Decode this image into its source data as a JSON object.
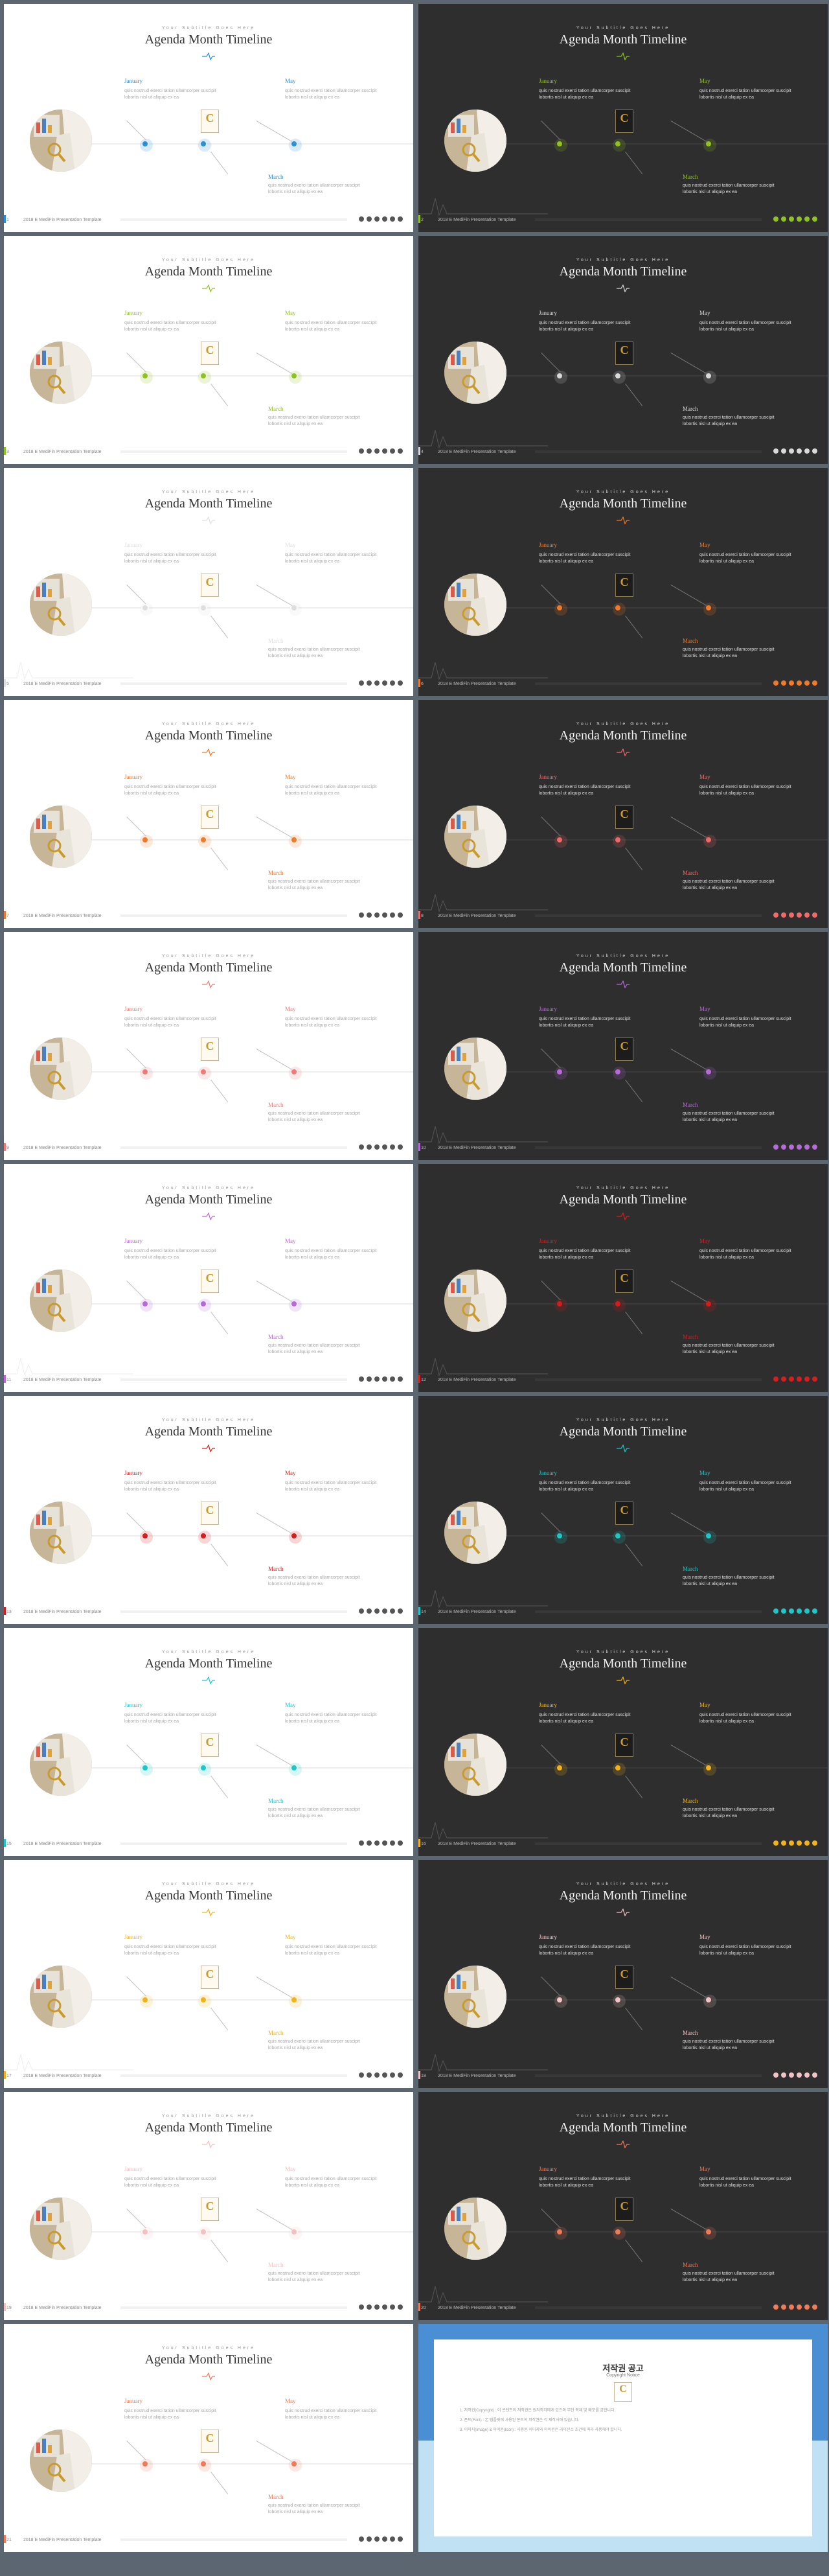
{
  "common": {
    "subtitle": "Your Subtitle Goes Here",
    "title": "Agenda Month Timeline",
    "footer": "2018 E MediFin Presentation Template",
    "labels": [
      "January",
      "May",
      "March"
    ],
    "desc": "quis nostrud exerci tation ullamcorper suscipit lobortis nisl ut aliquip ex ea",
    "logo_letter": "C"
  },
  "slides": [
    {
      "theme": "light",
      "accent": "#2b8fd6",
      "page": "1"
    },
    {
      "theme": "dark",
      "accent": "#8fc31f",
      "page": "2"
    },
    {
      "theme": "light",
      "accent": "#8fc31f",
      "page": "3"
    },
    {
      "theme": "dark",
      "accent": "#d9d9d9",
      "page": "4"
    },
    {
      "theme": "light",
      "accent": "#e0e0e0",
      "page": "5"
    },
    {
      "theme": "dark",
      "accent": "#f07a2a",
      "page": "6"
    },
    {
      "theme": "light",
      "accent": "#f07a2a",
      "page": "7"
    },
    {
      "theme": "dark",
      "accent": "#f06a6a",
      "page": "8"
    },
    {
      "theme": "light",
      "accent": "#f07a7a",
      "page": "9"
    },
    {
      "theme": "dark",
      "accent": "#b86ad8",
      "page": "10"
    },
    {
      "theme": "light",
      "accent": "#b86ad8",
      "page": "11"
    },
    {
      "theme": "dark",
      "accent": "#d61e1e",
      "page": "12"
    },
    {
      "theme": "light",
      "accent": "#d61e1e",
      "page": "13"
    },
    {
      "theme": "dark",
      "accent": "#1cc7c7",
      "page": "14"
    },
    {
      "theme": "light",
      "accent": "#1cc7c7",
      "page": "15"
    },
    {
      "theme": "dark",
      "accent": "#f2b31a",
      "page": "16"
    },
    {
      "theme": "light",
      "accent": "#f2b31a",
      "page": "17"
    },
    {
      "theme": "dark",
      "accent": "#f4c4c4",
      "page": "18"
    },
    {
      "theme": "light",
      "accent": "#f5c0c0",
      "page": "19"
    },
    {
      "theme": "dark",
      "accent": "#f07a5a",
      "page": "20"
    },
    {
      "theme": "light",
      "accent": "#f07a5a",
      "page": "21"
    }
  ],
  "copyright": {
    "title": "저작권 공고",
    "subtitle": "Copyright Notice",
    "logo_letter": "C",
    "paragraphs": [
      "1. 저작권(Copyright) : 이 콘텐츠의 저작권은 원저작자에게 있으며 무단 복제 및 배포를 금합니다.",
      "2. 폰트(Font) : 본 템플릿에 사용된 폰트의 저작권은 각 제작사에 있습니다.",
      "3. 이미지(Image) & 아이콘(Icon) : 사용된 이미지와 아이콘은 라이선스 조건에 따라 사용해야 합니다."
    ]
  }
}
